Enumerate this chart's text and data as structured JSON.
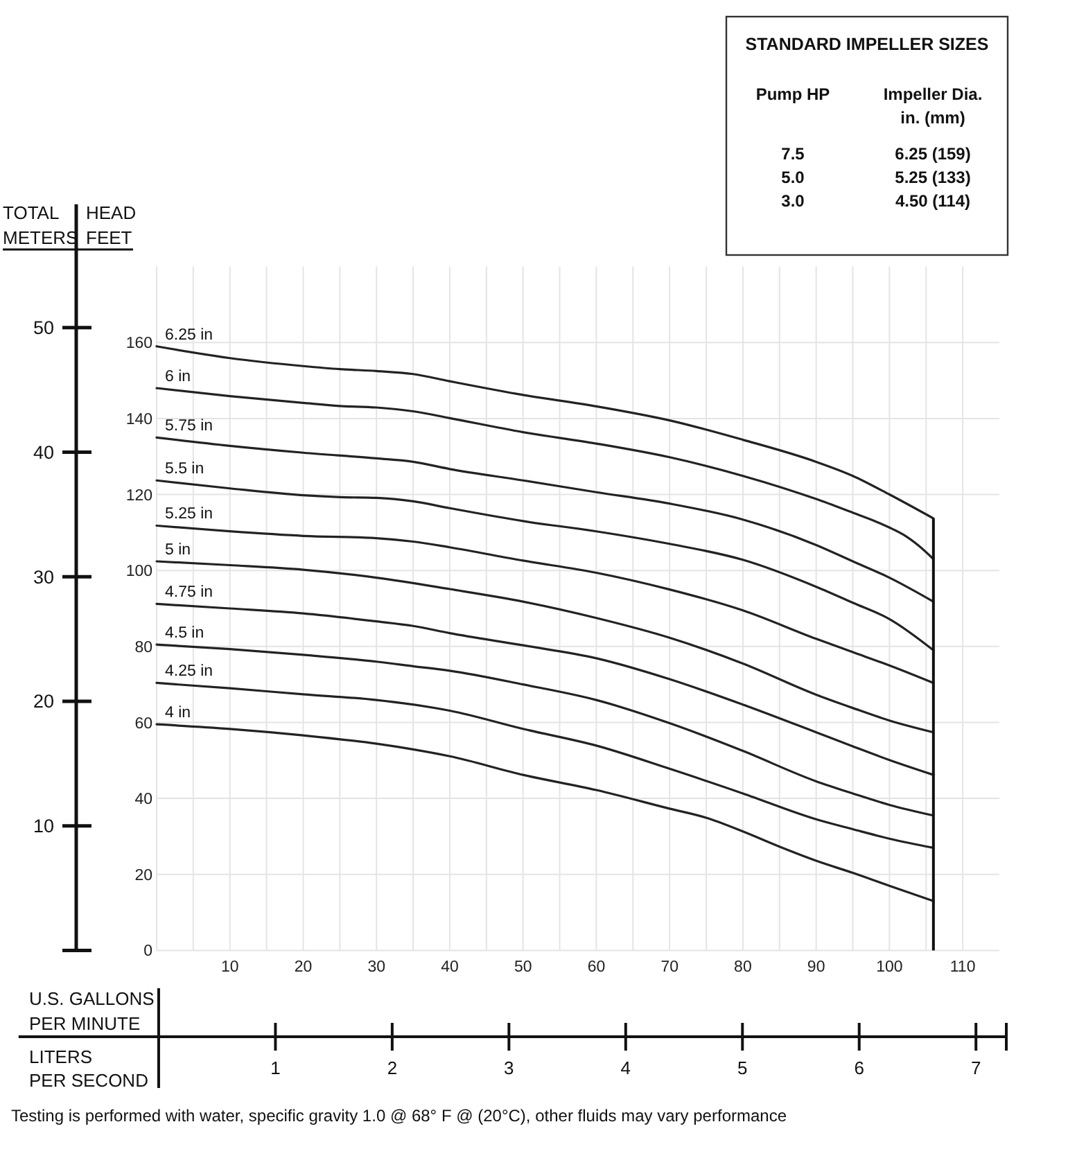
{
  "chart_data": {
    "type": "line",
    "xlabel": "U.S. GALLONS PER MINUTE",
    "x2label": "LITERS PER SECOND",
    "ylabel": "HEAD FEET",
    "y2label": "TOTAL METERS",
    "xlim": [
      0,
      115
    ],
    "xticks": [
      {
        "value": 0,
        "label": null
      },
      {
        "value": 5,
        "label": null
      },
      10,
      {
        "value": 15,
        "label": null
      },
      20,
      {
        "value": 25,
        "label": null
      },
      30,
      {
        "value": 35,
        "label": null
      },
      40,
      {
        "value": 45,
        "label": null
      },
      50,
      {
        "value": 55,
        "label": null
      },
      60,
      {
        "value": 65,
        "label": null
      },
      70,
      {
        "value": 75,
        "label": null
      },
      80,
      {
        "value": 85,
        "label": null
      },
      90,
      {
        "value": 95,
        "label": null
      },
      100,
      {
        "value": 105,
        "label": null
      },
      110
    ],
    "x2lim": [
      -1.2,
      7.26
    ],
    "x2ticks": [
      1,
      2,
      3,
      4,
      5,
      6,
      7
    ],
    "ylim": [
      0,
      180
    ],
    "yticks": [
      0,
      20,
      40,
      60,
      80,
      100,
      120,
      140,
      160
    ],
    "y2lim": [
      0,
      59.9
    ],
    "y2ticks": [
      {
        "value": 0,
        "label": null
      },
      10,
      20,
      30,
      40,
      50
    ],
    "grid": true,
    "ref_lines": [
      {
        "axis": "x",
        "value": 106
      }
    ],
    "series": [
      {
        "name": "6.25 in",
        "color": "#222222",
        "x": [
          0,
          10,
          20,
          25,
          30,
          35,
          40,
          50,
          60,
          70,
          80,
          90,
          95,
          100,
          106
        ],
        "values": [
          159,
          155.9,
          153.8,
          153.0,
          152.5,
          151.7,
          149.8,
          146.2,
          143.2,
          139.5,
          134.4,
          128.6,
          124.9,
          120.0,
          113.7
        ]
      },
      {
        "name": "6 in",
        "color": "#222222",
        "x": [
          0,
          10,
          20,
          25,
          30,
          35,
          40,
          50,
          60,
          70,
          80,
          90,
          95,
          98,
          100,
          102,
          104,
          106
        ],
        "values": [
          148.0,
          145.9,
          144.1,
          143.3,
          142.9,
          141.9,
          140.1,
          136.4,
          133.4,
          129.8,
          124.9,
          118.8,
          115.2,
          113.0,
          111.3,
          109.3,
          106.5,
          103.0
        ]
      },
      {
        "name": "5.75 in",
        "color": "#222222",
        "x": [
          0,
          10,
          20,
          30,
          35,
          40,
          50,
          60,
          70,
          80,
          90,
          95,
          100,
          106
        ],
        "values": [
          135.0,
          132.8,
          131.0,
          129.5,
          128.6,
          126.7,
          123.7,
          120.6,
          117.6,
          113.4,
          106.7,
          102.4,
          98.1,
          91.8
        ]
      },
      {
        "name": "5.5 in",
        "color": "#222222",
        "x": [
          0,
          10,
          20,
          25,
          30,
          35,
          40,
          50,
          60,
          70,
          80,
          90,
          95,
          100,
          106
        ],
        "values": [
          123.7,
          121.6,
          119.8,
          119.3,
          119.1,
          118.2,
          116.4,
          113.0,
          110.3,
          107.0,
          102.8,
          95.7,
          91.5,
          87.2,
          79.0
        ]
      },
      {
        "name": "5.25 in",
        "color": "#222222",
        "x": [
          0,
          10,
          20,
          30,
          35,
          40,
          50,
          60,
          70,
          80,
          90,
          95,
          100,
          106
        ],
        "values": [
          111.8,
          110.3,
          109.1,
          108.5,
          107.6,
          106.1,
          102.6,
          99.4,
          95.0,
          89.5,
          82.0,
          78.5,
          75.0,
          70.4
        ]
      },
      {
        "name": "5 in",
        "color": "#222222",
        "x": [
          0,
          10,
          20,
          30,
          40,
          50,
          60,
          70,
          80,
          90,
          95,
          100,
          106
        ],
        "values": [
          102.4,
          101.4,
          100.2,
          98.1,
          95.1,
          91.8,
          87.5,
          82.3,
          75.5,
          67.3,
          63.8,
          60.5,
          57.4
        ]
      },
      {
        "name": "4.75 in",
        "color": "#222222",
        "x": [
          0,
          10,
          20,
          30,
          35,
          40,
          50,
          60,
          70,
          80,
          90,
          95,
          100,
          106
        ],
        "values": [
          91.2,
          90.0,
          88.7,
          86.6,
          85.4,
          83.5,
          80.3,
          76.9,
          71.4,
          64.7,
          57.4,
          53.7,
          50.1,
          46.2
        ]
      },
      {
        "name": "4.5 in",
        "color": "#222222",
        "x": [
          0,
          10,
          20,
          30,
          35,
          40,
          50,
          60,
          70,
          80,
          90,
          95,
          100,
          106
        ],
        "values": [
          80.5,
          79.3,
          77.8,
          76.0,
          74.8,
          73.6,
          70.0,
          65.9,
          59.8,
          52.5,
          44.5,
          41.3,
          38.3,
          35.5
        ]
      },
      {
        "name": "4.25 in",
        "color": "#222222",
        "x": [
          0,
          10,
          20,
          30,
          35,
          40,
          50,
          60,
          70,
          80,
          90,
          95,
          100,
          106
        ],
        "values": [
          70.4,
          69.0,
          67.4,
          65.9,
          64.7,
          63.1,
          58.3,
          53.9,
          47.8,
          41.3,
          34.5,
          31.9,
          29.4,
          27.0
        ]
      },
      {
        "name": "4 in",
        "color": "#222222",
        "x": [
          0,
          10,
          20,
          30,
          35,
          40,
          50,
          60,
          70,
          75,
          80,
          85,
          90,
          95,
          100,
          106
        ],
        "values": [
          59.5,
          58.3,
          56.6,
          54.4,
          52.9,
          51.1,
          46.2,
          42.2,
          37.3,
          34.9,
          31.3,
          27.3,
          23.6,
          20.4,
          17.0,
          13.0
        ]
      }
    ],
    "annotations": [
      "STANDARD IMPELLER SIZES",
      "Pump HP",
      "Impeller Dia. in. (mm)",
      "7.5",
      "6.25 (159)",
      "5.0",
      "5.25 (133)",
      "3.0",
      "4.50 (114)",
      "Testing is performed with water, specific gravity 1.0 @ 68° F @ (20°C), other fluids may vary performance"
    ]
  }
}
